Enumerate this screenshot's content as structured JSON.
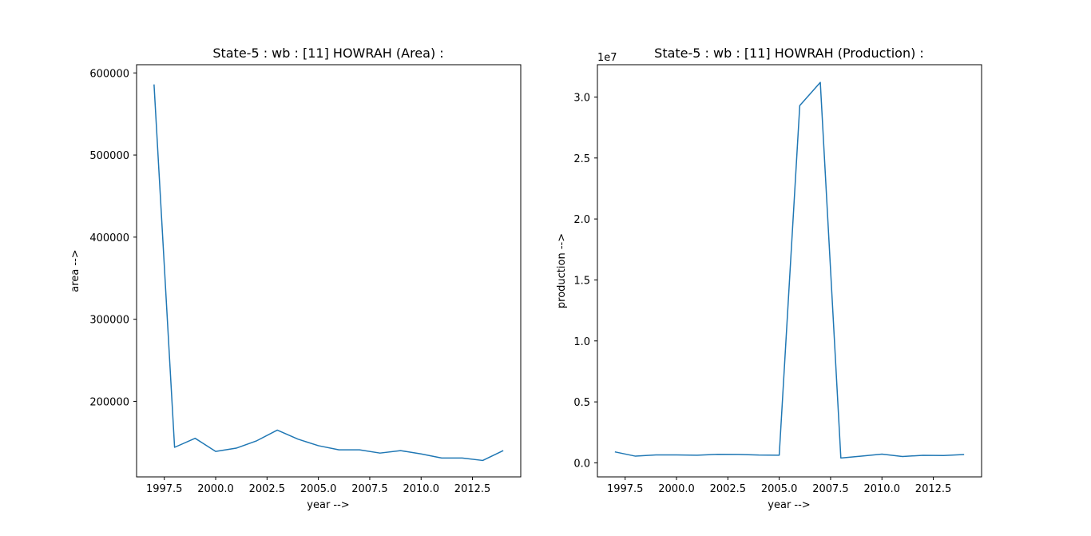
{
  "chart_data": [
    {
      "type": "line",
      "title": "State-5 : wb : [11] HOWRAH (Area) :",
      "xlabel": "year -->",
      "ylabel": "area -->",
      "xlim": [
        1996.15,
        2014.85
      ],
      "ylim": [
        108000,
        610000
      ],
      "xticks": [
        1997.5,
        2000.0,
        2002.5,
        2005.0,
        2007.5,
        2010.0,
        2012.5
      ],
      "xtick_labels": [
        "1997.5",
        "2000.0",
        "2002.5",
        "2005.0",
        "2007.5",
        "2010.0",
        "2012.5"
      ],
      "yticks": [
        200000,
        300000,
        400000,
        500000,
        600000
      ],
      "ytick_labels": [
        "200000",
        "300000",
        "400000",
        "500000",
        "600000"
      ],
      "offset_text": "",
      "grid": false,
      "legend": "none",
      "line_color": "#1f77b4",
      "x": [
        1997,
        1998,
        1999,
        2000,
        2001,
        2002,
        2003,
        2004,
        2005,
        2006,
        2007,
        2008,
        2009,
        2010,
        2011,
        2012,
        2013,
        2014
      ],
      "values": [
        586000,
        144000,
        155000,
        139000,
        143000,
        152000,
        165000,
        154000,
        146000,
        141000,
        141000,
        137000,
        140000,
        136000,
        131000,
        131000,
        128000,
        140000
      ]
    },
    {
      "type": "line",
      "title": "State-5 : wb : [11] HOWRAH (Production) :",
      "xlabel": "year -->",
      "ylabel": "production -->",
      "xlim": [
        1996.15,
        2014.85
      ],
      "ylim": [
        -1150000,
        32650000
      ],
      "xticks": [
        1997.5,
        2000.0,
        2002.5,
        2005.0,
        2007.5,
        2010.0,
        2012.5
      ],
      "xtick_labels": [
        "1997.5",
        "2000.0",
        "2002.5",
        "2005.0",
        "2007.5",
        "2010.0",
        "2012.5"
      ],
      "yticks": [
        0,
        5000000,
        10000000,
        15000000,
        20000000,
        25000000,
        30000000
      ],
      "ytick_labels": [
        "0.0",
        "0.5",
        "1.0",
        "1.5",
        "2.0",
        "2.5",
        "3.0"
      ],
      "offset_text": "1e7",
      "grid": false,
      "legend": "none",
      "line_color": "#1f77b4",
      "x": [
        1997,
        1998,
        1999,
        2000,
        2001,
        2002,
        2003,
        2004,
        2005,
        2006,
        2007,
        2008,
        2009,
        2010,
        2011,
        2012,
        2013,
        2014
      ],
      "values": [
        900000,
        550000,
        650000,
        650000,
        630000,
        700000,
        690000,
        640000,
        630000,
        29300000,
        31200000,
        400000,
        550000,
        720000,
        520000,
        620000,
        600000,
        680000
      ]
    }
  ]
}
